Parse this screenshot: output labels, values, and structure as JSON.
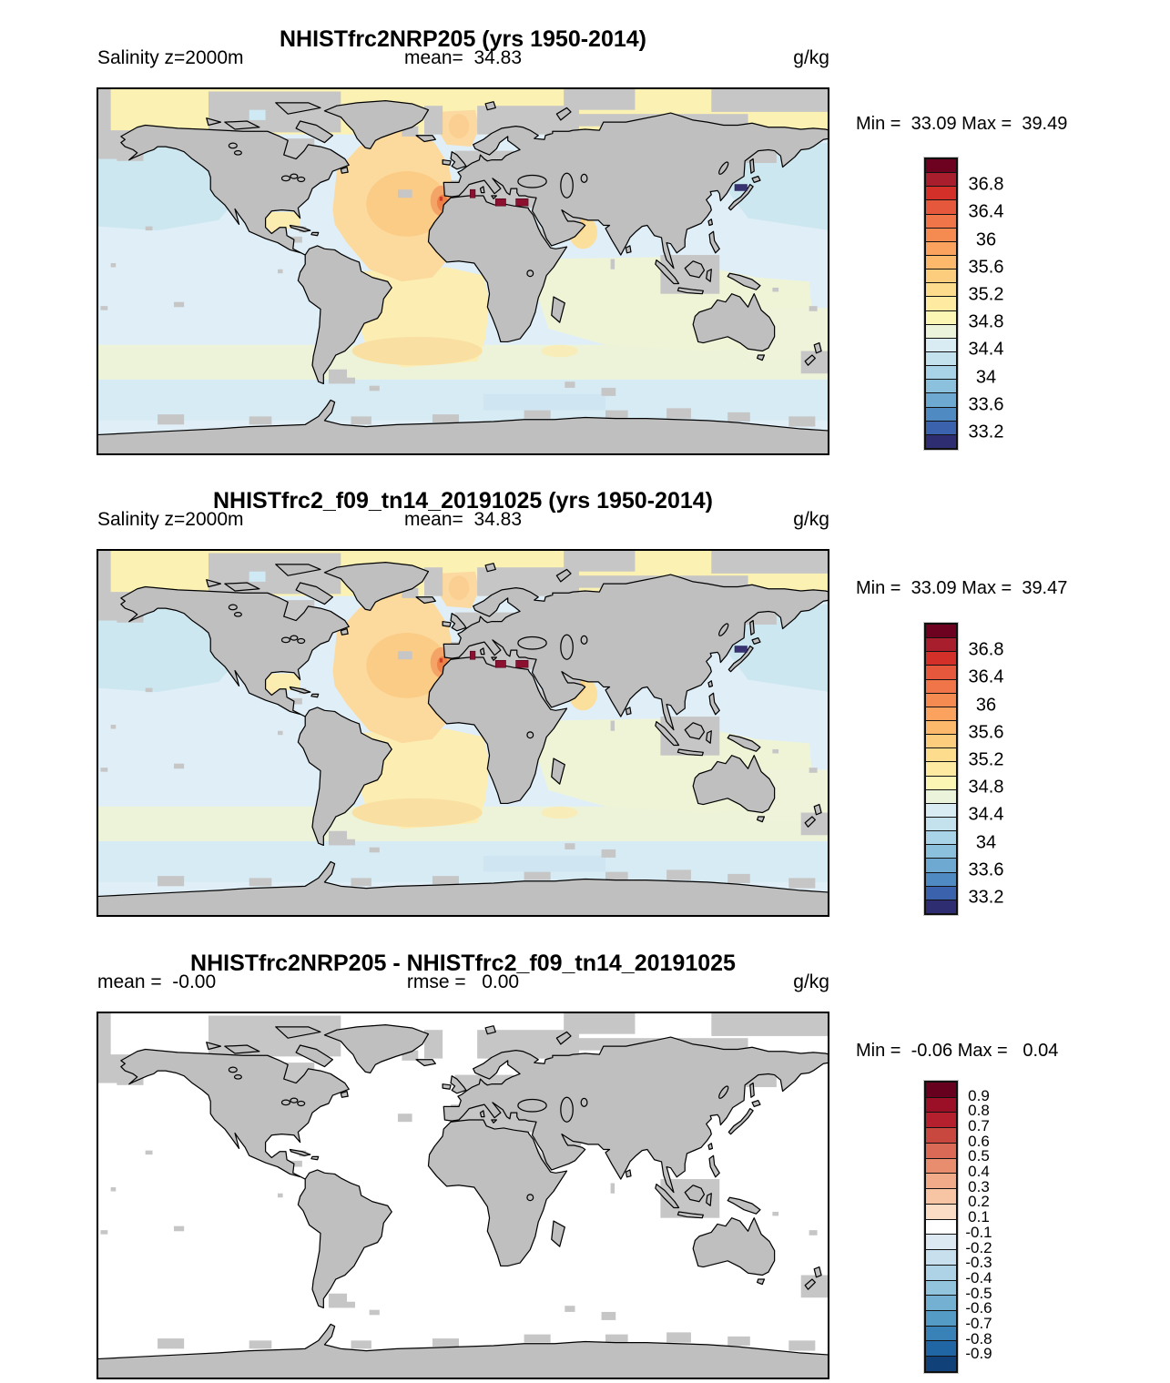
{
  "figure": {
    "background": "#ffffff"
  },
  "panels": [
    {
      "title": "NHISTfrc2NRP205 (yrs 1950-2014)",
      "var_label": "Salinity z=2000m",
      "mean_label": "mean=  34.83",
      "units": "g/kg",
      "minmax": "Min =  33.09 Max =  39.49",
      "colorbar": {
        "colors": [
          "#6c0120",
          "#a81e2c",
          "#d3302a",
          "#e6583b",
          "#f0764a",
          "#f68b51",
          "#fba35e",
          "#fcb96b",
          "#fccd7c",
          "#fddd8d",
          "#feeba1",
          "#fbf6b4",
          "#ebf3da",
          "#d9ecf4",
          "#c4e2ee",
          "#a9d4e7",
          "#8cc1dd",
          "#6da9d1",
          "#4f8ac2",
          "#3a62ad",
          "#2e2d72"
        ],
        "labels": [
          {
            "text": "36.8",
            "boundary": 2
          },
          {
            "text": "36.4",
            "boundary": 4
          },
          {
            "text": "36",
            "boundary": 6
          },
          {
            "text": "35.6",
            "boundary": 8
          },
          {
            "text": "35.2",
            "boundary": 10
          },
          {
            "text": "34.8",
            "boundary": 12
          },
          {
            "text": "34.4",
            "boundary": 14
          },
          {
            "text": "34",
            "boundary": 16
          },
          {
            "text": "33.6",
            "boundary": 18
          },
          {
            "text": "33.2",
            "boundary": 20
          }
        ]
      }
    },
    {
      "title": "NHISTfrc2_f09_tn14_20191025 (yrs 1950-2014)",
      "var_label": "Salinity z=2000m",
      "mean_label": "mean=  34.83",
      "units": "g/kg",
      "minmax": "Min =  33.09 Max =  39.47",
      "colorbar": {
        "colors": [
          "#6c0120",
          "#a81e2c",
          "#d3302a",
          "#e6583b",
          "#f0764a",
          "#f68b51",
          "#fba35e",
          "#fcb96b",
          "#fccd7c",
          "#fddd8d",
          "#feeba1",
          "#fbf6b4",
          "#ebf3da",
          "#d9ecf4",
          "#c4e2ee",
          "#a9d4e7",
          "#8cc1dd",
          "#6da9d1",
          "#4f8ac2",
          "#3a62ad",
          "#2e2d72"
        ],
        "labels": [
          {
            "text": "36.8",
            "boundary": 2
          },
          {
            "text": "36.4",
            "boundary": 4
          },
          {
            "text": "36",
            "boundary": 6
          },
          {
            "text": "35.6",
            "boundary": 8
          },
          {
            "text": "35.2",
            "boundary": 10
          },
          {
            "text": "34.8",
            "boundary": 12
          },
          {
            "text": "34.4",
            "boundary": 14
          },
          {
            "text": "34",
            "boundary": 16
          },
          {
            "text": "33.6",
            "boundary": 18
          },
          {
            "text": "33.2",
            "boundary": 20
          }
        ]
      }
    },
    {
      "title": "NHISTfrc2NRP205 - NHISTfrc2_f09_tn14_20191025",
      "var_label": "mean =  -0.00",
      "mean_label": "rmse =   0.00",
      "units": "g/kg",
      "minmax": "Min =  -0.06 Max =   0.04",
      "colorbar": {
        "colors": [
          "#67001f",
          "#9c1027",
          "#b5202e",
          "#c84840",
          "#da6a55",
          "#e88e6e",
          "#f2ab88",
          "#f8c5a4",
          "#fbdcc5",
          "#ffffff",
          "#dde9f2",
          "#c8dfee",
          "#aed2e6",
          "#93c4dd",
          "#74b0d2",
          "#549bc5",
          "#3982b7",
          "#2066a4",
          "#114179"
        ],
        "labels": [
          {
            "text": "0.9",
            "boundary": 1
          },
          {
            "text": "0.8",
            "boundary": 2
          },
          {
            "text": "0.7",
            "boundary": 3
          },
          {
            "text": "0.6",
            "boundary": 4
          },
          {
            "text": "0.5",
            "boundary": 5
          },
          {
            "text": "0.4",
            "boundary": 6
          },
          {
            "text": "0.3",
            "boundary": 7
          },
          {
            "text": "0.2",
            "boundary": 8
          },
          {
            "text": "0.1",
            "boundary": 9
          },
          {
            "text": "-0.1",
            "boundary": 10
          },
          {
            "text": "-0.2",
            "boundary": 11
          },
          {
            "text": "-0.3",
            "boundary": 12
          },
          {
            "text": "-0.4",
            "boundary": 13
          },
          {
            "text": "-0.5",
            "boundary": 14
          },
          {
            "text": "-0.6",
            "boundary": 15
          },
          {
            "text": "-0.7",
            "boundary": 16
          },
          {
            "text": "-0.8",
            "boundary": 17
          },
          {
            "text": "-0.9",
            "boundary": 18
          }
        ]
      }
    }
  ],
  "map_colors": {
    "land": "#bfbfbf",
    "shelf_mask": "#c6c6c6",
    "coastline": "#000000",
    "ocean_base": "#e0eff7",
    "north_pacific": "#cde7f1",
    "southern_band": "#d7ebf4",
    "subtropical_green": "#edf3d9",
    "indian_ocean": "#eff4d6",
    "arctic_yellow": "#fbf1b3",
    "north_atlantic": "#fcda9e",
    "atlantic_core": "#fbcc86",
    "gibraltar_plume": "#f5a468",
    "plume_core": "#ee8147",
    "plume_max": "#d23b33",
    "south_atlantic": "#fcedb2",
    "south_atlantic_deep": "#f9e0a2",
    "mediterranean_spots": "#8c1030",
    "sea_of_japan_spot": "#393270",
    "diff_ocean": "#ffffff"
  },
  "chart_data": [
    {
      "type": "heatmap",
      "subtype": "global-map",
      "title": "NHISTfrc2NRP205 (yrs 1950-2014)",
      "variable": "Salinity",
      "level": "z=2000m",
      "units": "g/kg",
      "mean": 34.83,
      "min": 33.09,
      "max": 39.49,
      "colorbar_ticks": [
        33.2,
        33.6,
        34,
        34.4,
        34.8,
        35.2,
        35.6,
        36,
        36.4,
        36.8
      ],
      "contour_step": 0.2,
      "palette": "blue-yellow-red (low to high)",
      "regions_approx_g_per_kg": {
        "arctic": 35.0,
        "north_pacific": 34.3,
        "south_pacific": 34.6,
        "north_atlantic": 35.5,
        "gibraltar_outflow": 36.4,
        "mediterranean": 37.2,
        "south_atlantic": 35.0,
        "indian_ocean": 34.75,
        "southern_ocean": 34.45,
        "sea_of_japan": 33.1
      }
    },
    {
      "type": "heatmap",
      "subtype": "global-map",
      "title": "NHISTfrc2_f09_tn14_20191025 (yrs 1950-2014)",
      "variable": "Salinity",
      "level": "z=2000m",
      "units": "g/kg",
      "mean": 34.83,
      "min": 33.09,
      "max": 39.47,
      "colorbar_ticks": [
        33.2,
        33.6,
        34,
        34.4,
        34.8,
        35.2,
        35.6,
        36,
        36.4,
        36.8
      ],
      "contour_step": 0.2,
      "palette": "blue-yellow-red (low to high)",
      "regions_approx_g_per_kg": {
        "arctic": 35.0,
        "north_pacific": 34.3,
        "south_pacific": 34.6,
        "north_atlantic": 35.5,
        "gibraltar_outflow": 36.4,
        "mediterranean": 37.2,
        "south_atlantic": 35.0,
        "indian_ocean": 34.75,
        "southern_ocean": 34.45,
        "sea_of_japan": 33.1
      }
    },
    {
      "type": "heatmap",
      "subtype": "difference-map",
      "title": "NHISTfrc2NRP205 - NHISTfrc2_f09_tn14_20191025",
      "units": "g/kg",
      "mean": -0.0,
      "rmse": 0.0,
      "min": -0.06,
      "max": 0.04,
      "colorbar_ticks": [
        -0.9,
        -0.8,
        -0.7,
        -0.6,
        -0.5,
        -0.4,
        -0.3,
        -0.2,
        -0.1,
        0.1,
        0.2,
        0.3,
        0.4,
        0.5,
        0.6,
        0.7,
        0.8,
        0.9
      ],
      "palette": "red-white-blue diverging",
      "field_note": "difference within +/-0.1 everywhere; ocean renders white"
    }
  ]
}
